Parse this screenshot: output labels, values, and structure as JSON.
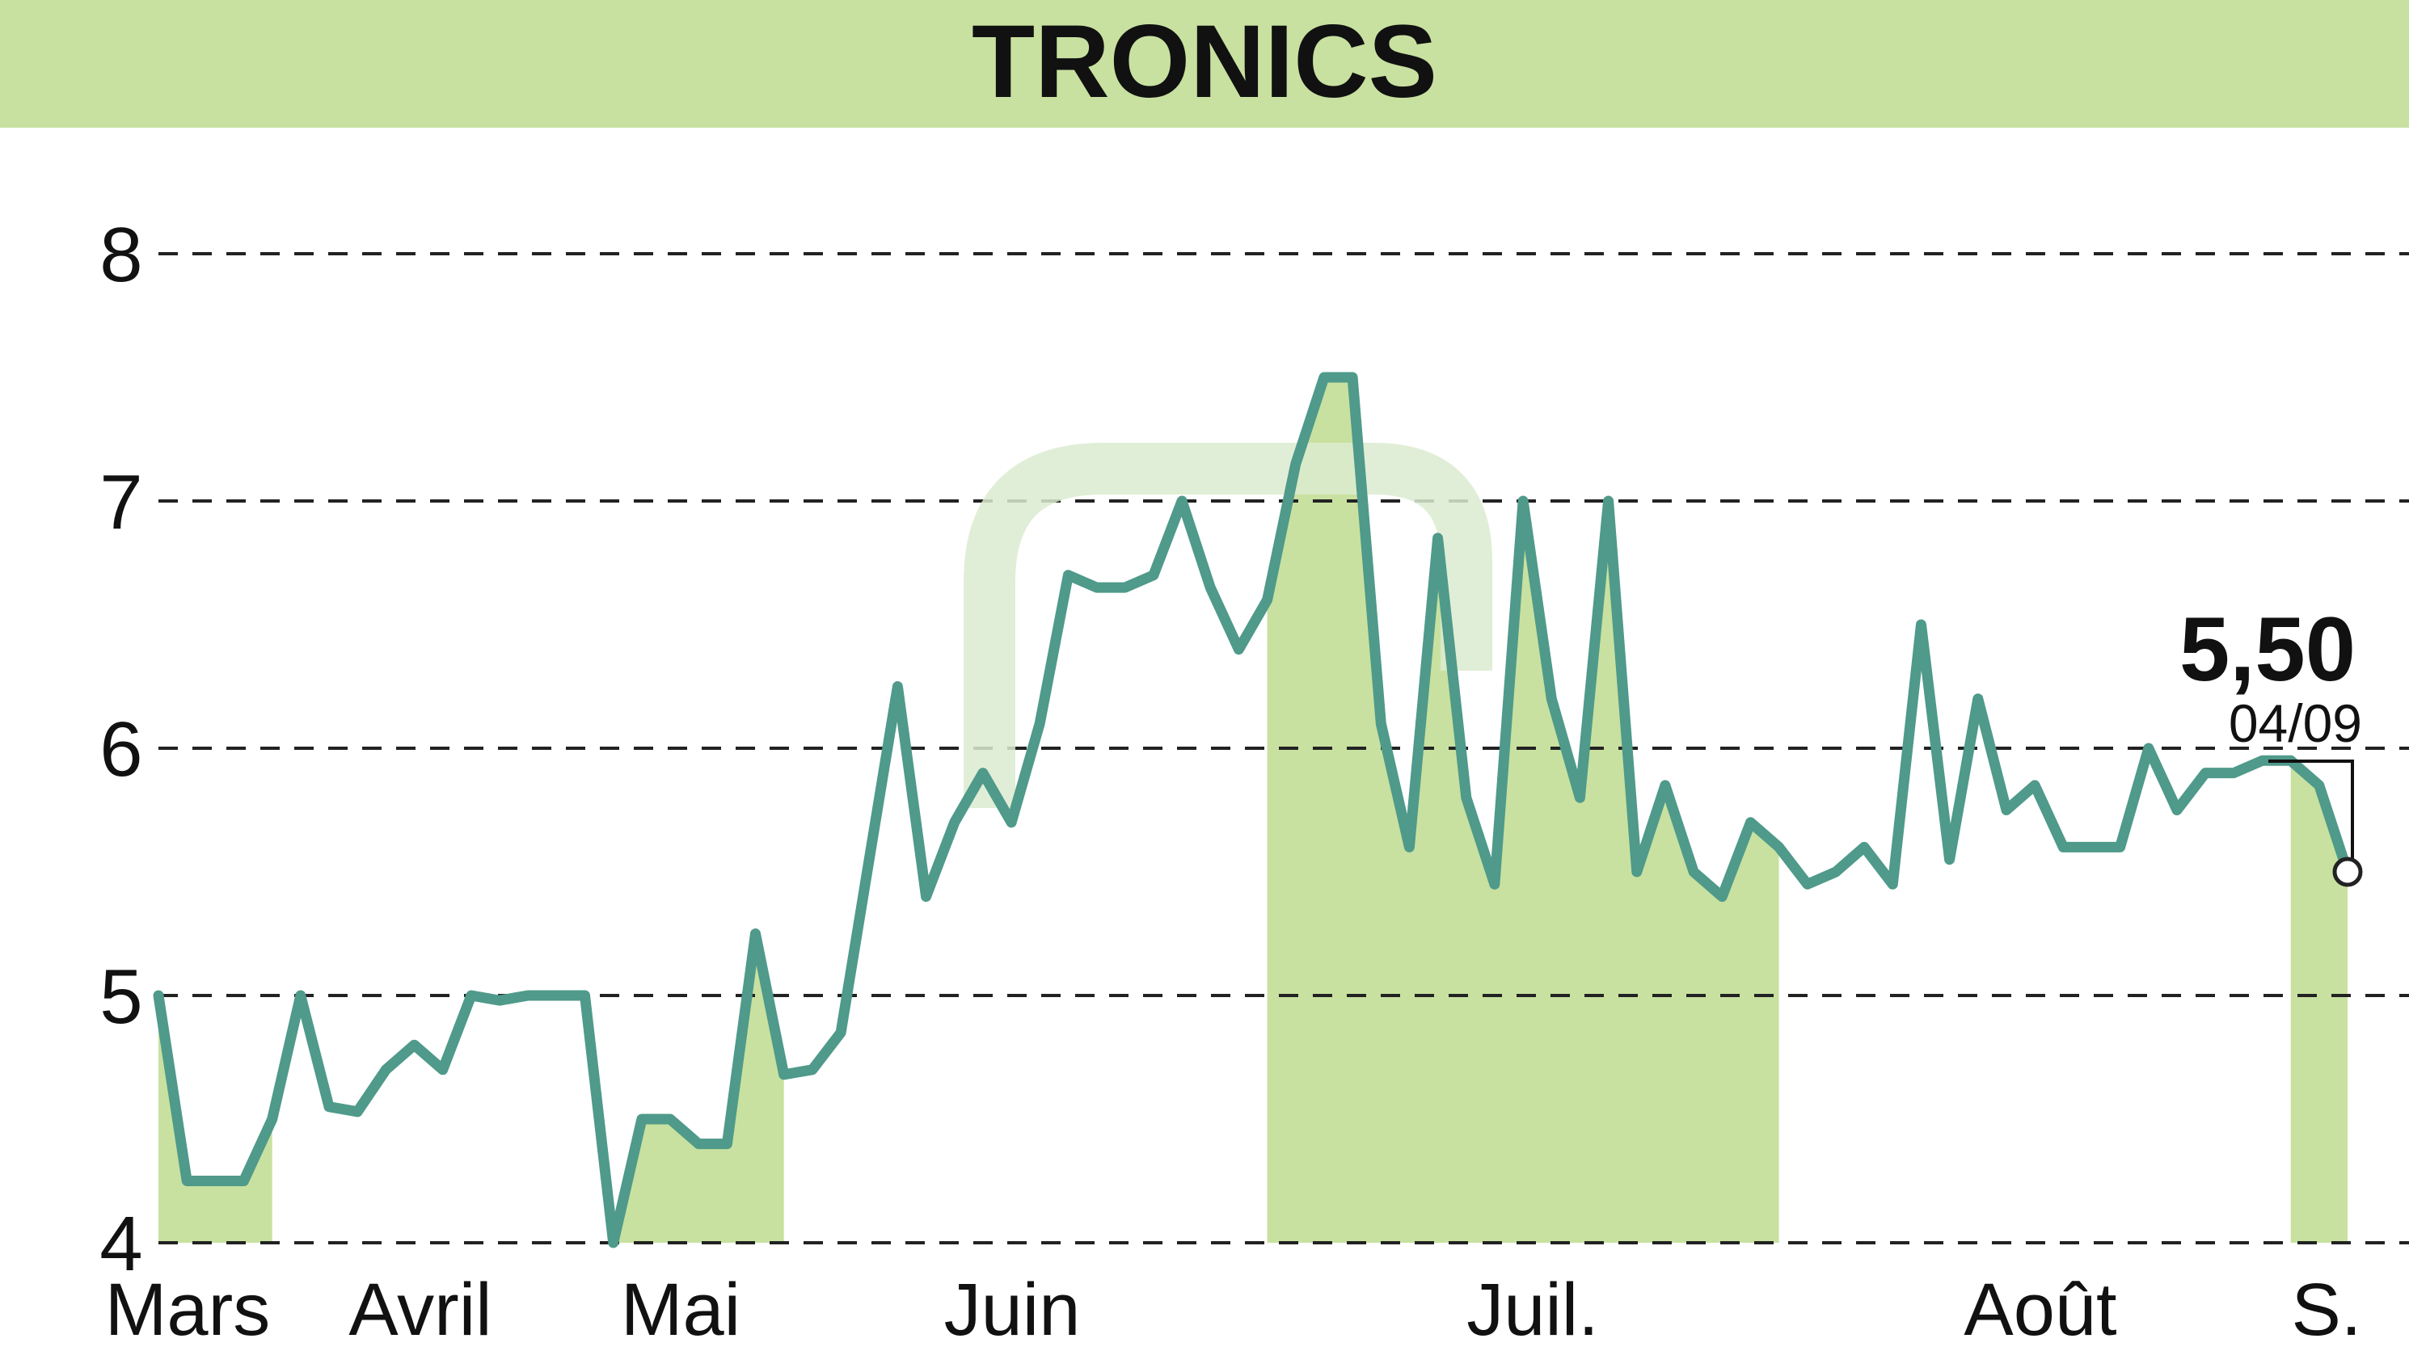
{
  "chart_data": {
    "type": "line",
    "title": "TRONICS",
    "x_ticks": [
      "Mars",
      "Avril",
      "Mai",
      "Juin",
      "Juil.",
      "Août",
      "S."
    ],
    "y_ticks": [
      "4",
      "5",
      "6",
      "7",
      "8"
    ],
    "ylim": [
      4,
      8
    ],
    "grid": "horizontal dashed",
    "last_value_label": "5,50",
    "last_date_label": "04/09",
    "colors": {
      "line": "#4f9a8a",
      "fill": "#c8e1a0",
      "header": "#c8e1a0",
      "text": "#111111"
    },
    "series": [
      {
        "values": [
          5.0,
          4.25,
          4.25,
          4.25,
          4.5,
          5.0,
          4.55,
          4.53,
          4.7,
          4.8,
          4.7,
          5.0,
          4.98,
          5.0,
          5.0,
          5.0,
          4.0,
          4.5,
          4.5,
          4.4,
          4.4,
          5.25,
          4.68,
          4.7,
          4.85,
          5.55,
          6.25,
          5.4,
          5.7,
          5.9,
          5.7,
          6.1,
          6.7,
          6.65,
          6.65,
          6.7,
          7.0,
          6.65,
          6.4,
          6.6,
          7.15,
          7.5,
          7.5,
          6.1,
          5.6,
          6.85,
          5.8,
          5.45,
          7.0,
          6.2,
          5.8,
          7.0,
          5.5,
          5.85,
          5.5,
          5.4,
          5.7,
          5.6,
          5.45,
          5.5,
          5.6,
          5.45,
          6.5,
          5.55,
          6.2,
          5.75,
          5.85,
          5.6,
          5.6,
          5.6,
          6.0,
          5.75,
          5.9,
          5.9,
          5.95,
          5.95,
          5.85,
          5.5
        ]
      }
    ]
  }
}
